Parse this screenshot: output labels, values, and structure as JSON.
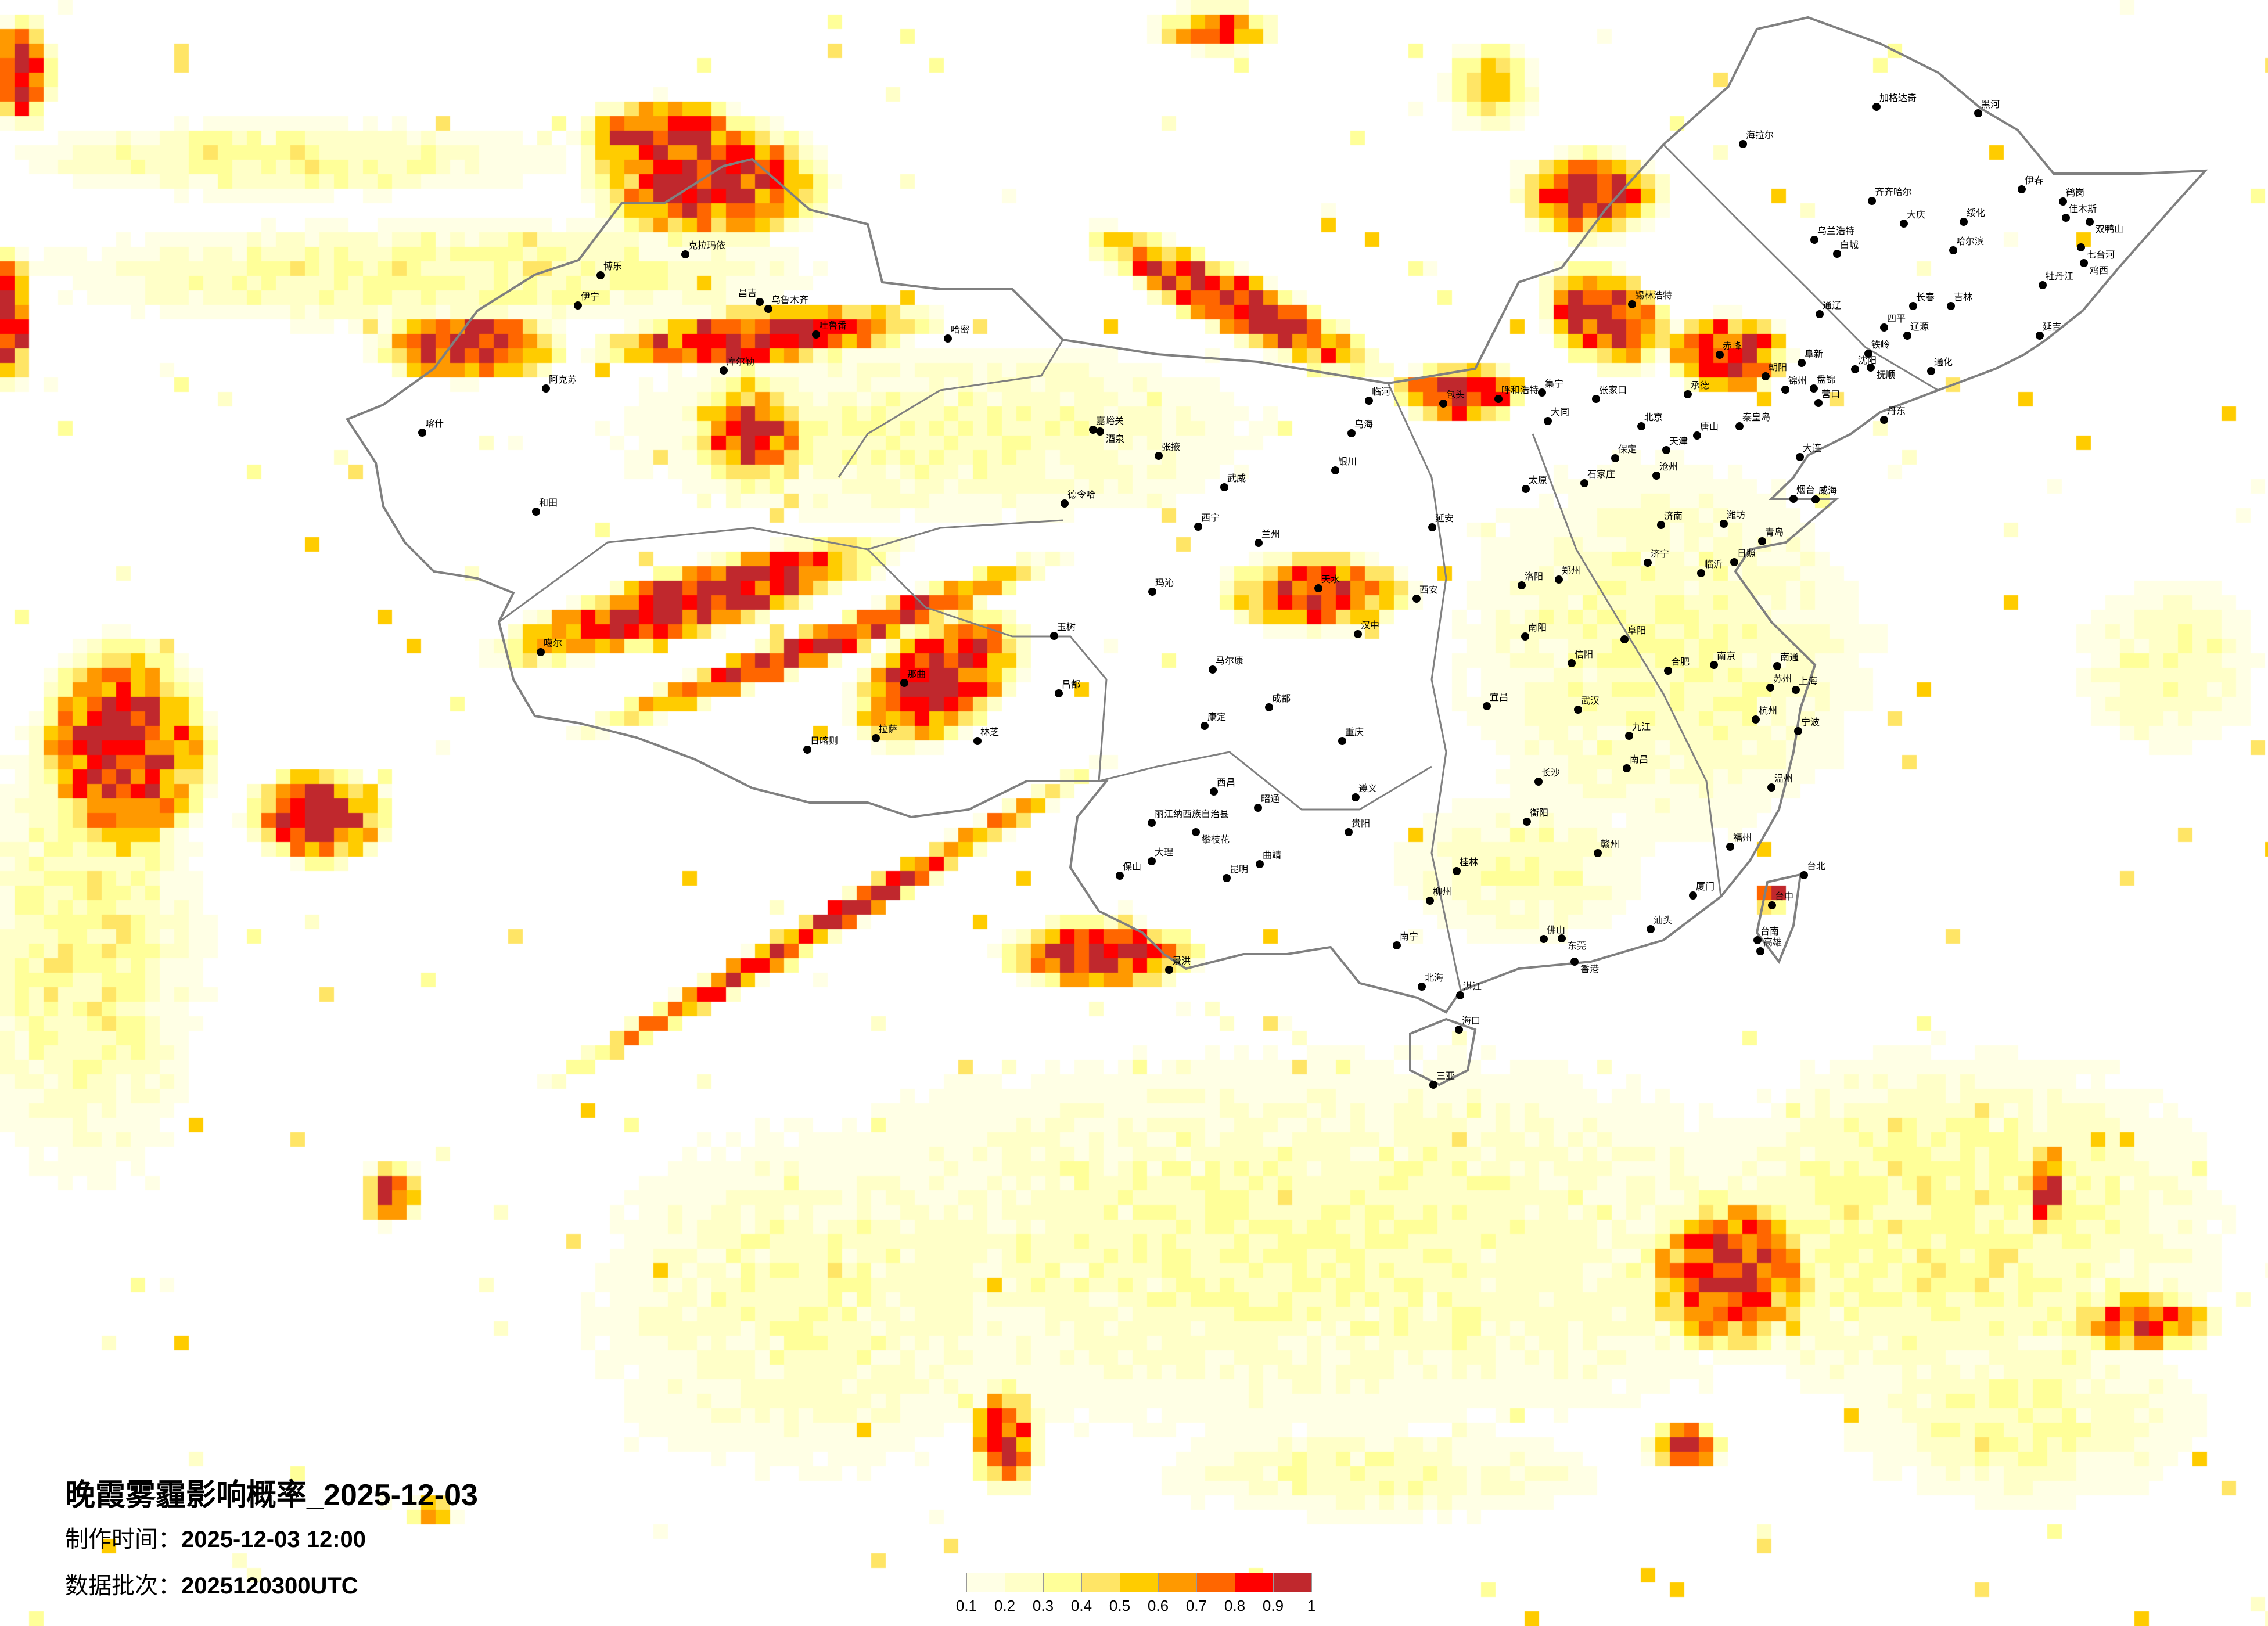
{
  "title": "晚霞雾霾影响概率_2025-12-03",
  "made_time": {
    "label": "制作时间：",
    "value": "2025-12-03 12:00"
  },
  "data_batch": {
    "label": "数据批次：",
    "value": "2025120300UTC"
  },
  "legend": {
    "ticks": [
      "0.1",
      "0.2",
      "0.3",
      "0.4",
      "0.5",
      "0.6",
      "0.7",
      "0.8",
      "0.9",
      "1"
    ],
    "colors": [
      "#FFFFE5",
      "#FFFFC8",
      "#FFFF99",
      "#FFE566",
      "#FFCC00",
      "#FF9900",
      "#FF6600",
      "#FF0000",
      "#C0282D"
    ]
  },
  "map": {
    "border_color": "#808080",
    "city_marker_color": "#000000",
    "cities": [
      "加格达奇",
      "黑河",
      "海拉尔",
      "齐齐哈尔",
      "大庆",
      "绥化",
      "哈尔滨",
      "伊春",
      "鹤岗",
      "佳木斯",
      "双鸭山",
      "七台河",
      "鸡西",
      "牡丹江",
      "长春",
      "吉林",
      "延吉",
      "通辽",
      "四平",
      "辽源",
      "乌兰浩特",
      "白城",
      "赤峰",
      "铁岭",
      "沈阳",
      "抚顺",
      "阜新",
      "朝阳",
      "锦州",
      "盘锦",
      "营口",
      "丹东",
      "通化",
      "承德",
      "秦皇岛",
      "北京",
      "天津",
      "唐山",
      "张家口",
      "大同",
      "保定",
      "石家庄",
      "沧州",
      "大连",
      "烟台",
      "威海",
      "济南",
      "青岛",
      "潍坊",
      "日照",
      "临沂",
      "济宁",
      "郑州",
      "上海",
      "南京",
      "杭州",
      "合肥",
      "武汉",
      "南昌",
      "长沙",
      "福州",
      "厦门",
      "台中",
      "台北",
      "温州",
      "宁波",
      "苏州",
      "南通",
      "九江",
      "赣州",
      "衡阳",
      "宜昌",
      "南阳",
      "信阳",
      "阜阳",
      "佛山",
      "东莞",
      "香港",
      "南宁",
      "海口",
      "三亚",
      "贵阳",
      "桂林",
      "柳州",
      "汕头",
      "湛江",
      "北海",
      "遵义",
      "台南",
      "高雄",
      "乌鲁木齐",
      "吐鲁番",
      "哈密",
      "库尔勒",
      "阿克苏",
      "和田",
      "伊宁",
      "克拉玛依",
      "博乐",
      "昌吉",
      "喀什",
      "兰州",
      "西宁",
      "西安",
      "成都",
      "重庆",
      "银川",
      "包头",
      "呼和浩特",
      "太原",
      "延安",
      "天水",
      "汉中",
      "嘉峪关",
      "酒泉",
      "张掖",
      "武威",
      "德令哈",
      "玉树",
      "马尔康",
      "康定",
      "玛沁",
      "乌海",
      "临河",
      "洛阳",
      "拉萨",
      "日喀则",
      "那曲",
      "林芝",
      "噶尔",
      "昌都",
      "昆明",
      "大理",
      "丽江纳西族自治县",
      "西昌",
      "景洪",
      "攀枝花",
      "保山",
      "曲靖",
      "昭通",
      "锡林浩特",
      "集宁"
    ]
  }
}
